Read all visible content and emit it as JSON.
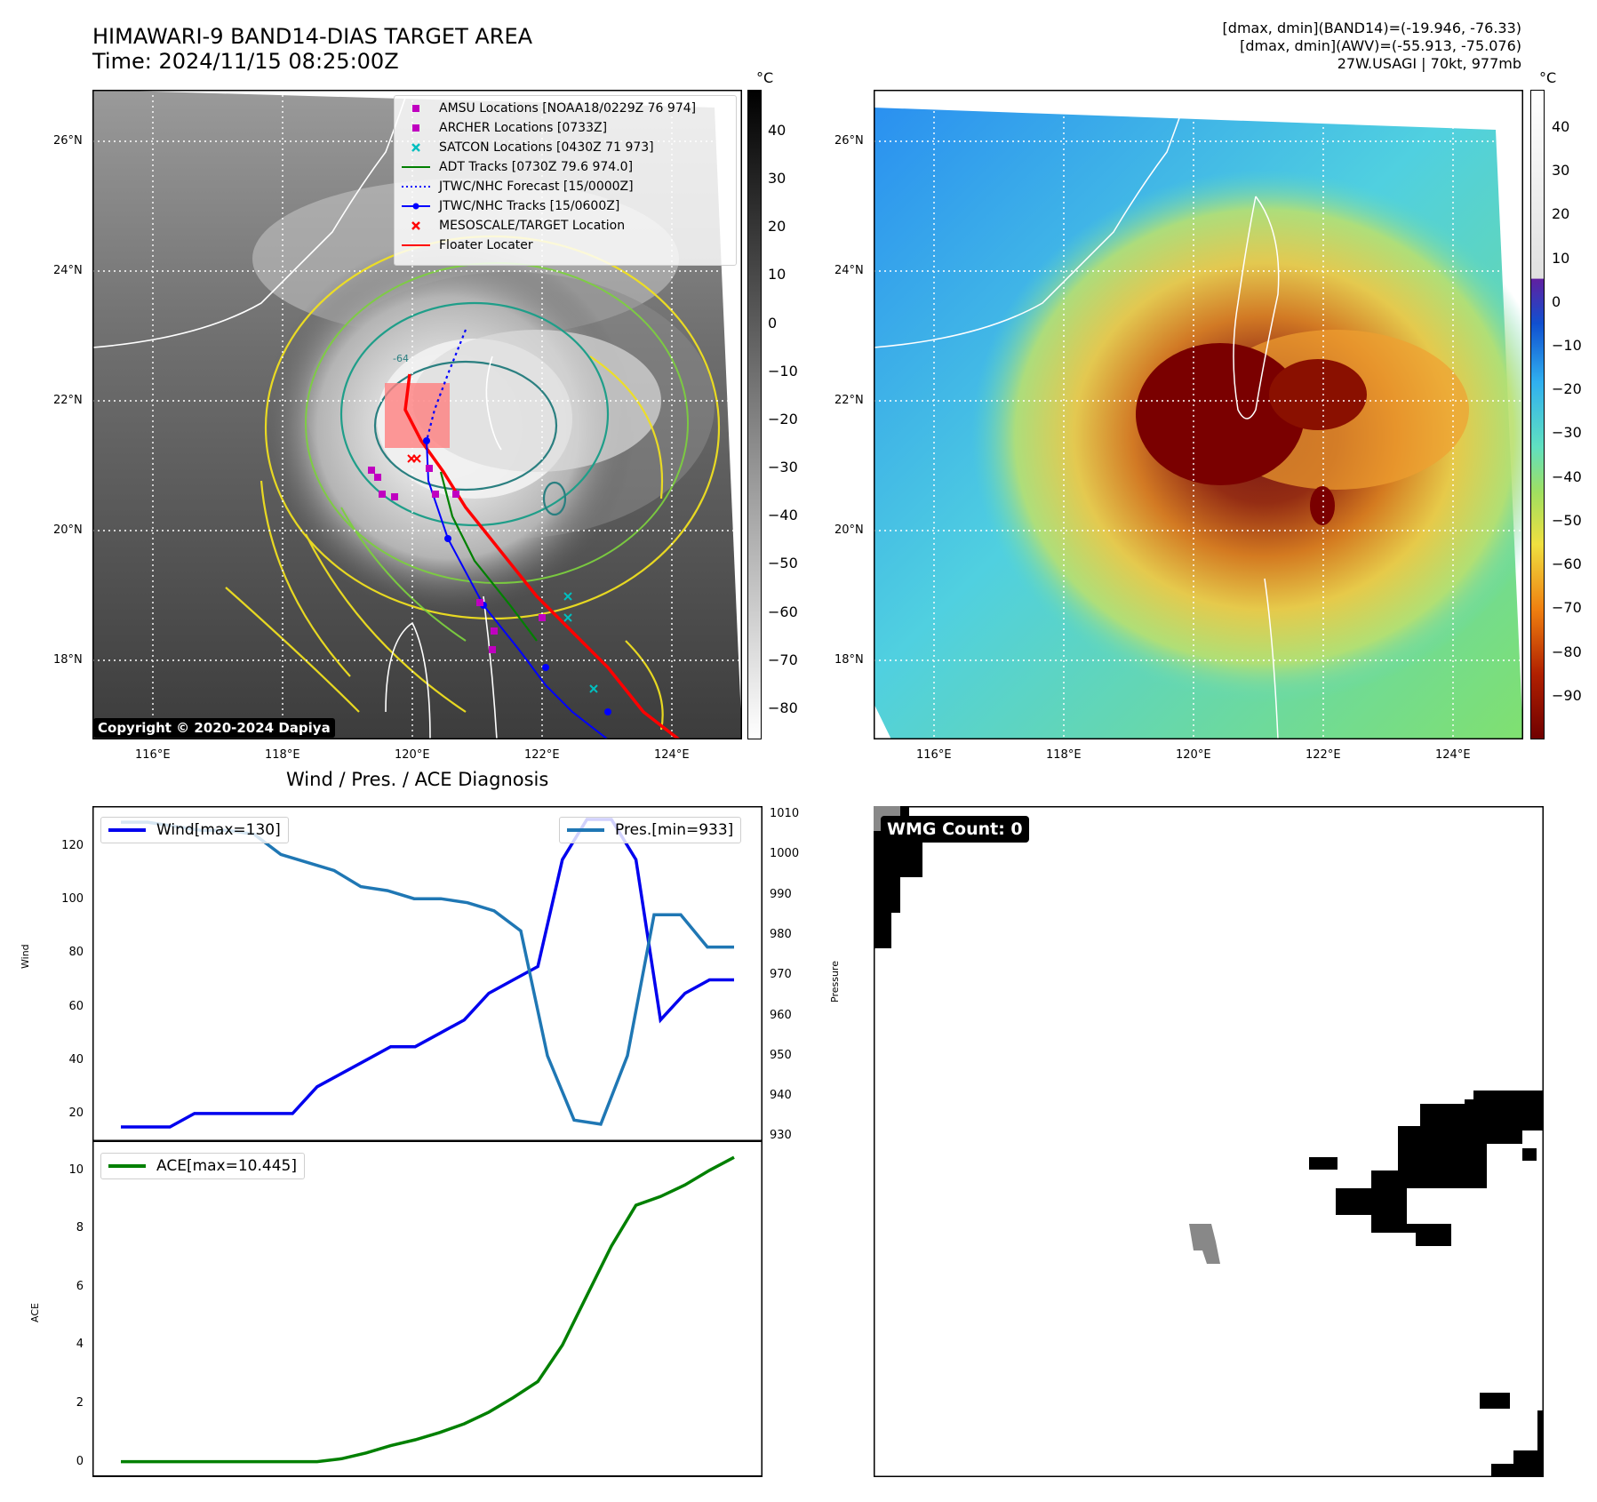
{
  "header": {
    "title_line1": "HIMAWARI-9 BAND14-DIAS TARGET AREA",
    "title_line2": "Time: 2024/11/15 08:25:00Z",
    "info_line1": "[dmax, dmin](BAND14)=(-19.946, -76.33)",
    "info_line2": "[dmax, dmin](AWV)=(-55.913, -75.076)",
    "info_line3": "27W.USAGI | 70kt, 977mb"
  },
  "map": {
    "lat_labels": [
      "26°N",
      "24°N",
      "22°N",
      "20°N",
      "18°N"
    ],
    "lon_labels": [
      "116°E",
      "118°E",
      "120°E",
      "122°E",
      "124°E"
    ],
    "contour_label": "-64",
    "copyright": "Copyright © 2020-2024 Dapiya"
  },
  "colorbar_left": {
    "unit": "°C",
    "ticks": [
      "40",
      "30",
      "20",
      "10",
      "0",
      "−10",
      "−20",
      "−30",
      "−40",
      "−50",
      "−60",
      "−70",
      "−80"
    ]
  },
  "colorbar_right": {
    "unit": "°C",
    "ticks": [
      "40",
      "30",
      "20",
      "10",
      "0",
      "−10",
      "−20",
      "−30",
      "−40",
      "−50",
      "−60",
      "−70",
      "−80",
      "−90"
    ]
  },
  "legend": {
    "items": [
      {
        "label": "AMSU Locations [NOAA18/0229Z 76 974]",
        "color": "#c000c0",
        "symbol": "square"
      },
      {
        "label": "ARCHER Locations [0733Z]",
        "color": "#c000c0",
        "symbol": "square"
      },
      {
        "label": "SATCON Locations [0430Z 71 973]",
        "color": "#00bfbf",
        "symbol": "x"
      },
      {
        "label": "ADT Tracks [0730Z 79.6 974.0]",
        "color": "#008000",
        "symbol": "line"
      },
      {
        "label": "JTWC/NHC Forecast [15/0000Z]",
        "color": "#0000ff",
        "symbol": "dotted"
      },
      {
        "label": "JTWC/NHC Tracks [15/0600Z]",
        "color": "#0000ff",
        "symbol": "line-dot"
      },
      {
        "label": "MESOSCALE/TARGET Location",
        "color": "#ff0000",
        "symbol": "x"
      },
      {
        "label": "Floater Locater",
        "color": "#ff0000",
        "symbol": "line"
      }
    ]
  },
  "wpa": {
    "title": "Wind / Pres. / ACE Diagnosis",
    "wind_legend": "Wind[max=130]",
    "pres_legend": "Pres.[min=933]",
    "ace_legend": "ACE[max=10.445]",
    "wind_axis_label": "Wind",
    "pres_axis_label": "Pressure",
    "ace_axis_label": "ACE",
    "wind_ticks": [
      "120",
      "100",
      "80",
      "60",
      "40",
      "20"
    ],
    "pres_ticks": [
      "1010",
      "1000",
      "990",
      "980",
      "970",
      "960",
      "950",
      "940",
      "930"
    ],
    "ace_ticks": [
      "10",
      "8",
      "6",
      "4",
      "2",
      "0"
    ]
  },
  "wmg": {
    "label": "WMG Count: 0"
  },
  "colors": {
    "wind": "#0000ee",
    "pressure": "#1f77b4",
    "ace": "#008000",
    "track_red": "#ff0000"
  },
  "chart_data": [
    {
      "type": "line",
      "title": "Wind / Pres. / ACE Diagnosis",
      "ylabel": "Wind",
      "ylim": [
        10,
        135
      ],
      "series": [
        {
          "name": "Wind[max=130]",
          "values": [
            15,
            15,
            15,
            20,
            20,
            20,
            20,
            20,
            30,
            35,
            40,
            45,
            45,
            50,
            55,
            65,
            70,
            75,
            115,
            130,
            130,
            115,
            55,
            65,
            70,
            70
          ]
        }
      ]
    },
    {
      "type": "line",
      "ylabel": "Pressure",
      "ylim": [
        929,
        1012
      ],
      "series": [
        {
          "name": "Pres.[min=933]",
          "values": [
            1008,
            1008,
            1007,
            1006,
            1006,
            1005,
            1000,
            998,
            996,
            992,
            991,
            989,
            989,
            988,
            986,
            981,
            950,
            934,
            933,
            950,
            985,
            985,
            977,
            977
          ]
        }
      ]
    },
    {
      "type": "line",
      "ylabel": "ACE",
      "ylim": [
        -0.5,
        11
      ],
      "series": [
        {
          "name": "ACE[max=10.445]",
          "values": [
            0,
            0,
            0,
            0,
            0,
            0,
            0,
            0,
            0,
            0.1,
            0.3,
            0.55,
            0.75,
            1.0,
            1.3,
            1.7,
            2.2,
            2.75,
            4.0,
            5.7,
            7.4,
            8.8,
            9.1,
            9.5,
            10.0,
            10.445
          ]
        }
      ]
    }
  ]
}
